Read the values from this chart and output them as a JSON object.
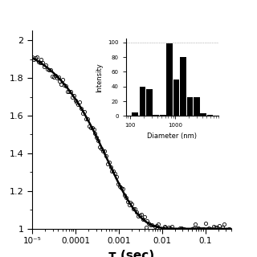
{
  "xlabel": "τ (sec)",
  "xlim": [
    1e-05,
    0.4
  ],
  "ylim": [
    1.0,
    2.05
  ],
  "yticks": [
    1.0,
    1.2,
    1.4,
    1.6,
    1.8,
    2.0
  ],
  "ytick_labels": [
    "1",
    "1.2",
    "1.4",
    "1.6",
    "1.8",
    "2"
  ],
  "xtick_positions": [
    1e-05,
    0.0001,
    0.001,
    0.01,
    0.1
  ],
  "xtick_labels": [
    "10⁻⁵",
    "0.0001",
    "0.001",
    "0.01",
    "0.1"
  ],
  "main_curve_color": "#000000",
  "scatter_color": "#000000",
  "scatter_facecolor": "none",
  "inset_bar_color": "#000000",
  "inset_bar_diameters": [
    130,
    190,
    270,
    380,
    540,
    760,
    1070,
    1510,
    2130,
    3010,
    4250,
    6000
  ],
  "inset_bar_values": [
    5,
    40,
    36,
    2,
    2,
    99,
    50,
    80,
    25,
    26,
    4,
    2
  ],
  "inset_xlabel": "Diameter (nm)",
  "inset_ylabel": "Intensity",
  "inset_yticks": [
    0,
    20,
    40,
    60,
    80,
    100
  ],
  "fit_tau0": 0.0018,
  "fit_beta": 0.58,
  "noise_seed": 42,
  "noise_amplitude": 0.012,
  "n_scatter": 130
}
